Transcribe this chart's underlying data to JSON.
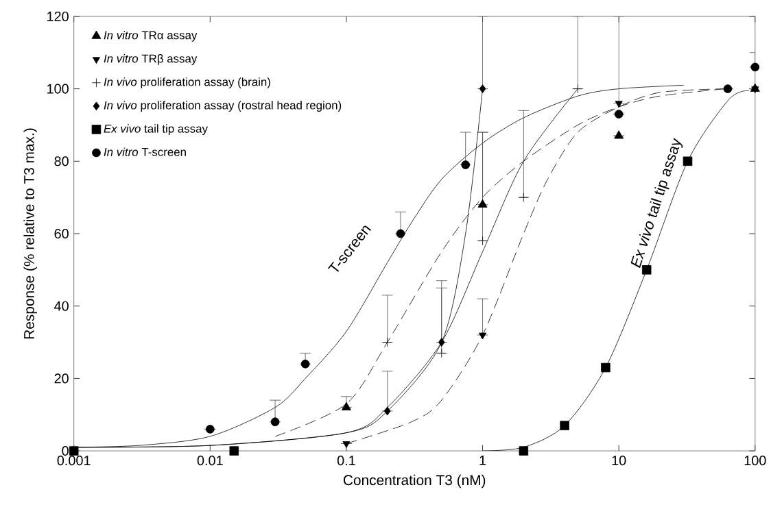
{
  "chart_data": {
    "type": "scatter",
    "xlabel": "Concentration T3 (nM)",
    "ylabel": "Response (% relative to T3 max.)",
    "log": "x",
    "grid": false,
    "legend": "top left",
    "xlim": [
      0.001,
      100
    ],
    "ylim": [
      0,
      120
    ],
    "xticks": [
      0.001,
      0.01,
      0.1,
      1,
      10,
      100
    ],
    "yticks": [
      0,
      20,
      40,
      60,
      80,
      100,
      120
    ],
    "annotations": [
      "T-screen",
      "*Ex vivo* tail tip assay"
    ],
    "series": [
      {
        "name": "*In vitro* TRα assay",
        "color": "#000000",
        "marker": "triangle",
        "x": [
          0.1,
          1,
          10,
          100
        ],
        "values": [
          12,
          68,
          87,
          100
        ],
        "errors": [
          [
            12,
            15
          ],
          [
            68,
            88
          ],
          null,
          null
        ]
      },
      {
        "name": "*In vitro* TRβ assay",
        "color": "#000000",
        "marker": "triangle-down",
        "x": [
          0.1,
          1,
          10,
          100
        ],
        "values": [
          2,
          32,
          96,
          100
        ],
        "errors": [
          null,
          [
            32,
            42
          ],
          [
            96,
            120
          ],
          null
        ]
      },
      {
        "name": "*In vivo* proliferation assay (brain)",
        "color": "#000000",
        "marker": "cross",
        "x": [
          0.2,
          0.5,
          1,
          2,
          5
        ],
        "values": [
          30,
          27,
          58,
          70,
          100
        ],
        "errors": [
          [
            30,
            43
          ],
          [
            27,
            45
          ],
          [
            58,
            88
          ],
          [
            70,
            94
          ],
          [
            100,
            120
          ]
        ]
      },
      {
        "name": "*In vivo* proliferation assay (rostral head region)",
        "color": "#000000",
        "marker": "diamond",
        "x": [
          0.2,
          0.5,
          1
        ],
        "values": [
          11,
          30,
          100
        ],
        "errors": [
          [
            11,
            22
          ],
          [
            30,
            47
          ],
          [
            100,
            120
          ]
        ]
      },
      {
        "name": "*Ex vivo* tail tip assay",
        "color": "#000000",
        "marker": "square",
        "x": [
          0.001,
          0.015,
          2,
          4,
          8,
          16,
          32
        ],
        "values": [
          0,
          0,
          0,
          7,
          23,
          50,
          80
        ]
      },
      {
        "name": "*In vitro* T-screen",
        "color": "#000000",
        "marker": "circle",
        "x": [
          0.01,
          0.03,
          0.05,
          0.25,
          0.75,
          10,
          63,
          100
        ],
        "values": [
          6,
          8,
          24,
          60,
          79,
          93,
          100,
          106
        ],
        "errors": [
          null,
          [
            8,
            14
          ],
          [
            24,
            27
          ],
          [
            60,
            66
          ],
          [
            79,
            88
          ],
          null,
          null,
          [
            106,
            110
          ]
        ]
      },
      {
        "type": "line",
        "color": "#000000",
        "line_style": "solid",
        "x": [
          0.001,
          0.003,
          0.01,
          0.03,
          0.05,
          0.1,
          0.2,
          0.3,
          0.5,
          1,
          2,
          5,
          10,
          30
        ],
        "values": [
          1,
          1.5,
          4,
          12,
          20,
          33,
          52,
          63,
          75,
          85,
          92,
          98,
          100,
          101
        ]
      },
      {
        "type": "line",
        "color": "#000000",
        "line_style": "dashed",
        "x": [
          0.03,
          0.1,
          0.2,
          0.5,
          1,
          2,
          5,
          10,
          20,
          60
        ],
        "values": [
          4,
          13,
          30,
          55,
          70,
          80,
          90,
          95,
          98,
          100
        ]
      },
      {
        "type": "line",
        "color": "#000000",
        "line_style": "dashed",
        "x": [
          0.1,
          0.3,
          0.5,
          1,
          2,
          3,
          5,
          10,
          20,
          60
        ],
        "values": [
          2,
          8,
          14,
          32,
          60,
          75,
          88,
          95,
          99,
          100
        ]
      },
      {
        "type": "line",
        "color": "#000000",
        "line_style": "solid",
        "x": [
          0.001,
          0.01,
          0.1,
          0.2,
          0.5,
          1,
          2,
          5
        ],
        "values": [
          1,
          1.5,
          5,
          12,
          30,
          55,
          80,
          100
        ]
      },
      {
        "type": "line",
        "color": "#000000",
        "line_style": "solid",
        "x": [
          0.001,
          0.01,
          0.1,
          0.2,
          0.5,
          0.75,
          1
        ],
        "values": [
          1,
          1.5,
          5,
          11,
          30,
          60,
          100
        ]
      },
      {
        "type": "line",
        "color": "#000000",
        "line_style": "solid",
        "x": [
          1,
          2,
          4,
          8,
          16,
          32,
          64,
          90
        ],
        "values": [
          0,
          1,
          7,
          23,
          50,
          80,
          97,
          99.5
        ]
      }
    ]
  }
}
